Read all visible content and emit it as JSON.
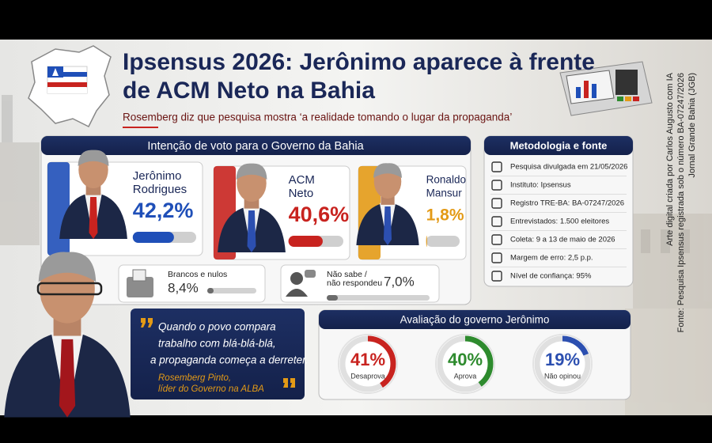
{
  "header": {
    "title_lines": [
      "Ipsensus 2026: Jerônimo aparece à frente",
      "de ACM Neto na Bahia"
    ],
    "subtitle": "Rosemberg diz que pesquisa mostra ‘a realidade tomando o lugar da propaganda’"
  },
  "credits": [
    "Arte digital criada por Carlos Augusto com IA",
    "Fonte: Pesquisa Ipsensus registrada sob o número BA-07247/2026",
    "Jornal Grande Bahia (JGB)"
  ],
  "vote_intention": {
    "title": "Intenção de voto para o Governo da Bahia",
    "candidates": [
      {
        "name_lines": [
          "Jerônimo",
          "Rodrigues"
        ],
        "value": 42.2,
        "label": "42,2%",
        "color": "#1f4fb8"
      },
      {
        "name_lines": [
          "ACM",
          "Neto"
        ],
        "value": 40.6,
        "label": "40,6%",
        "color": "#c8231f"
      },
      {
        "name_lines": [
          "Ronaldo",
          "Mansur"
        ],
        "value": 1.8,
        "label": "1,8%",
        "color": "#e39a16"
      }
    ],
    "others": [
      {
        "label_lines": [
          "Brancos e nulos"
        ],
        "value": 8.4,
        "value_label": "8,4%"
      },
      {
        "label_lines": [
          "Não sabe /",
          "não respondeu"
        ],
        "value": 7.0,
        "value_label": "7,0%"
      }
    ]
  },
  "methodology": {
    "title": "Metodologia e fonte",
    "items": [
      "Pesquisa divulgada em 21/05/2026",
      "Instituto: Ipsensus",
      "Registro TRE-BA: BA-07247/2026",
      "Entrevistados: 1.500 eleitores",
      "Coleta: 9 a 13 de maio de 2026",
      "Margem de erro: 2,5 p.p.",
      "Nível de confiança: 95%"
    ]
  },
  "quote": {
    "lines": [
      "Quando o povo compara",
      "trabalho com blá-blá-blá,",
      "a propaganda começa a derreter."
    ],
    "author": "Rosemberg Pinto,",
    "role": "líder do Governo na ALBA"
  },
  "evaluation": {
    "title": "Avaliação do governo Jerônimo",
    "items": [
      {
        "value": 41,
        "label": "41%",
        "caption": "Desaprova",
        "color": "#c8231f"
      },
      {
        "value": 40,
        "label": "40%",
        "caption": "Aprova",
        "color": "#2e8b2e"
      },
      {
        "value": 19,
        "label": "19%",
        "caption": "Não opinou",
        "color": "#2c4fb0"
      }
    ]
  }
}
